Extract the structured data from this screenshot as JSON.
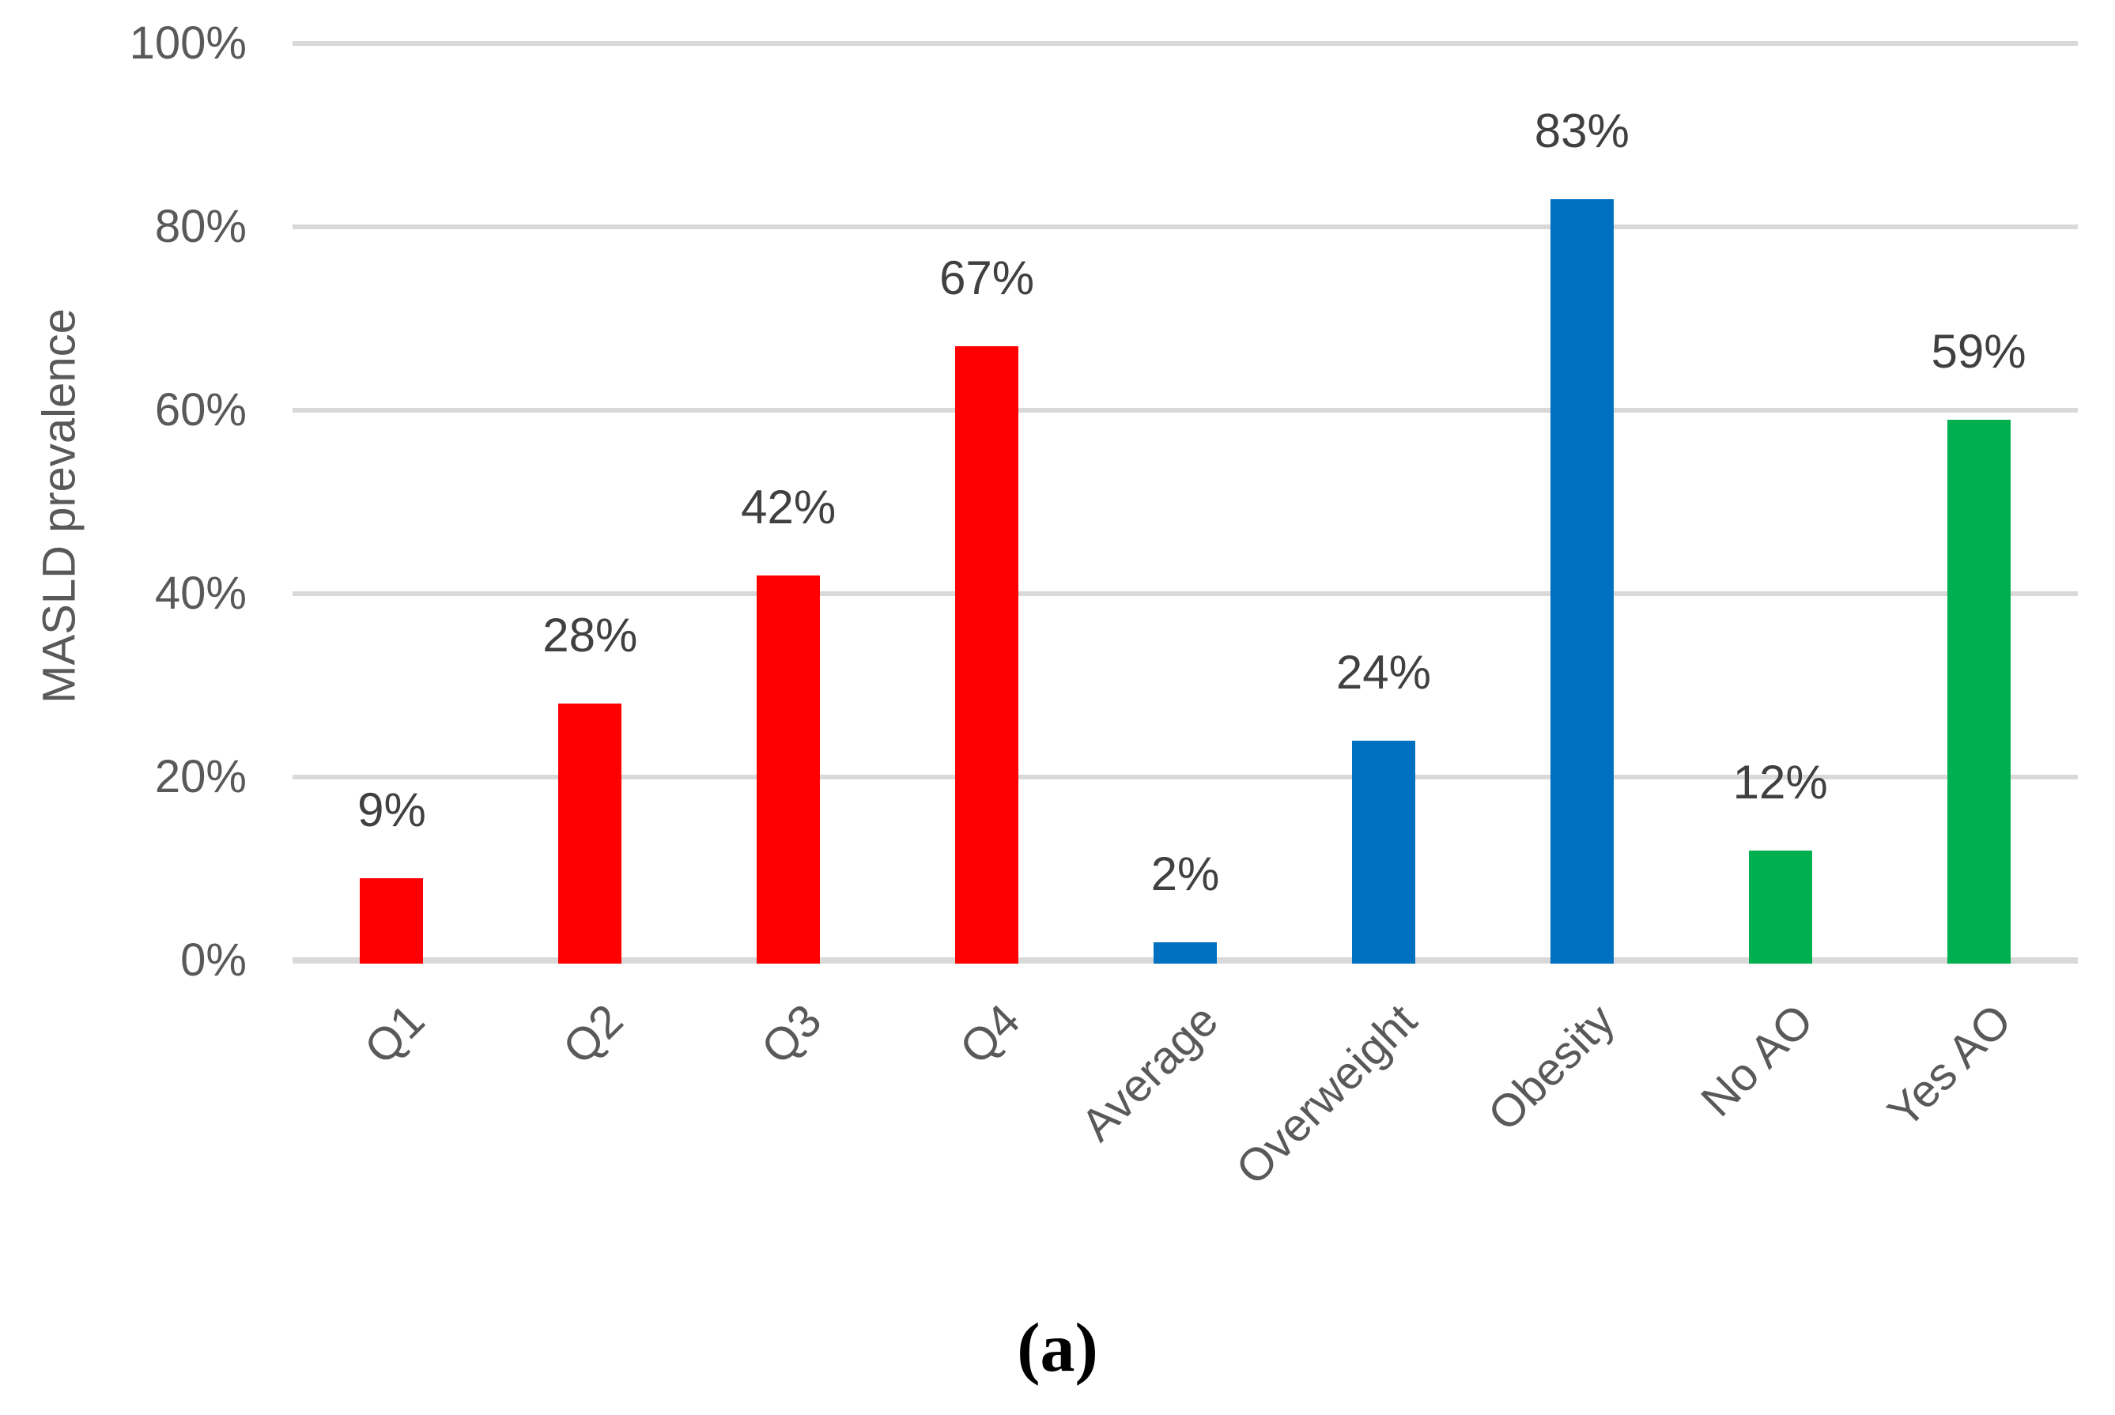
{
  "caption": "(a)",
  "chart_data": {
    "type": "bar",
    "title": "",
    "xlabel": "",
    "ylabel": "MASLD prevalence",
    "ylim": [
      0,
      100
    ],
    "grid": true,
    "legend": "none",
    "y_ticks": [
      "0%",
      "20%",
      "40%",
      "60%",
      "80%",
      "100%"
    ],
    "categories": [
      "Q1",
      "Q2",
      "Q3",
      "Q4",
      "Average",
      "Overweight",
      "Obesity",
      "No AO",
      "Yes AO"
    ],
    "values": [
      9,
      28,
      42,
      67,
      2,
      24,
      83,
      12,
      59
    ],
    "data_labels": [
      "9%",
      "28%",
      "42%",
      "67%",
      "2%",
      "24%",
      "83%",
      "12%",
      "59%"
    ],
    "bar_colors": [
      "#FF0000",
      "#FF0000",
      "#FF0000",
      "#FF0000",
      "#0070C0",
      "#0070C0",
      "#0070C0",
      "#00B050",
      "#00B050"
    ],
    "colors": {
      "red_series": "#FF0000",
      "blue_series": "#0070C0",
      "green_series": "#00B050",
      "gridline": "#D9D9D9",
      "tick_text": "#595959",
      "data_label_text": "#404040",
      "caption_text": "#000000",
      "background": "#FFFFFF"
    }
  }
}
